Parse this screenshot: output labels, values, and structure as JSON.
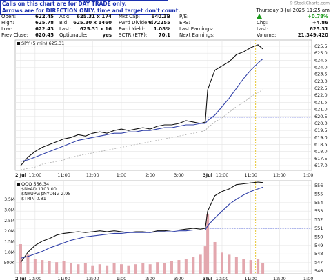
{
  "header": {
    "notes": [
      "Calls on this chart are for DAY TRADE only.",
      "Arrows are for DIRECTION ONLY, time and target don't count."
    ],
    "watermark": "© StockCharts.com",
    "date": "Thursday 3-Jul-2025 11:25 am",
    "change_pct": "+0.78%"
  },
  "quote": {
    "cols": [
      [
        [
          "Open:",
          "622.45"
        ],
        [
          "High:",
          "625.78"
        ],
        [
          "Low:",
          "622.43"
        ],
        [
          "Prev Close:",
          "620.45"
        ]
      ],
      [
        [
          "Ask:",
          "625.31 x 174"
        ],
        [
          "Bid:",
          "625.30 x 1460"
        ],
        [
          "Last:",
          "625.31 x 16"
        ],
        [
          "Optionable:",
          "yes"
        ]
      ],
      [
        [
          "Mkt Cap:",
          "640.3B"
        ],
        [
          "Fwrd Dividend:",
          "6.72255"
        ],
        [
          "Fwrd Yield:",
          "1.08%"
        ],
        [
          "SCTR (ETF):",
          "70.1"
        ]
      ],
      [
        [
          "P/E:"
        ],
        [
          "EPS:"
        ],
        [
          "Last Earnings:"
        ],
        [
          "Next Earnings:"
        ]
      ],
      [
        [
          "Chg:",
          "+4.86"
        ],
        [
          "Last:",
          "625.31"
        ],
        [
          "Volume:",
          "21,349,420"
        ]
      ]
    ]
  },
  "chart_data": [
    {
      "type": "line",
      "x": [
        0,
        3,
        6,
        9,
        12,
        15,
        18,
        21,
        24,
        27,
        30,
        33,
        36,
        39,
        42,
        45,
        48,
        51,
        54,
        57,
        60,
        63,
        66,
        69,
        72,
        75,
        77,
        78,
        81,
        84,
        87,
        90,
        93,
        96,
        99,
        101
      ],
      "xlim": [
        -2.3,
        121.4
      ],
      "xticks": [
        {
          "value": 0,
          "label": "2 Jul"
        },
        {
          "value": 6,
          "label": "10:00"
        },
        {
          "value": 18,
          "label": "11:00"
        },
        {
          "value": 30,
          "label": "12:00"
        },
        {
          "value": 42,
          "label": "1:00"
        },
        {
          "value": 54,
          "label": "2:00"
        },
        {
          "value": 66,
          "label": "3:00"
        },
        {
          "value": 78,
          "label": "3Jul"
        },
        {
          "value": 84,
          "label": "10:00"
        },
        {
          "value": 96,
          "label": "11:00"
        },
        {
          "value": 108,
          "label": "12:00"
        },
        {
          "value": 120,
          "label": "1:00"
        }
      ],
      "ylim": [
        616.66,
        625.94
      ],
      "yticks": [
        {
          "value": 617,
          "label": "617.0"
        },
        617.5,
        {
          "value": 618,
          "label": "618.0"
        },
        618.5,
        {
          "value": 619,
          "label": "619.0"
        },
        619.5,
        {
          "value": 620,
          "label": "620.0"
        },
        620.5,
        {
          "value": 621,
          "label": "621.0"
        },
        621.5,
        {
          "value": 622,
          "label": "622.0"
        },
        622.5,
        {
          "value": 623,
          "label": "623.0"
        },
        623.5,
        {
          "value": 624,
          "label": "624.0"
        },
        624.5,
        {
          "value": 625,
          "label": "625.0"
        },
        625.5
      ],
      "grid": true,
      "ref_line": {
        "value": 620.45,
        "x_from": 78
      },
      "vline_x": 98,
      "series": [
        {
          "name": "SPY (5 min) 625.31",
          "color": "#111111",
          "values": [
            617.0,
            617.6,
            618.0,
            618.3,
            618.5,
            618.7,
            618.9,
            619.0,
            619.2,
            619.1,
            619.3,
            619.4,
            619.3,
            619.5,
            619.6,
            619.5,
            619.6,
            619.7,
            619.6,
            619.8,
            619.9,
            619.9,
            620.0,
            620.2,
            620.1,
            620.0,
            620.1,
            622.4,
            623.8,
            624.1,
            624.4,
            624.9,
            625.1,
            625.4,
            625.6,
            625.31
          ]
        },
        {
          "color": "#3040a8",
          "values": [
            617.3,
            617.4,
            617.6,
            617.8,
            618.0,
            618.2,
            618.4,
            618.6,
            618.8,
            618.9,
            619.0,
            619.1,
            619.2,
            619.3,
            619.3,
            619.4,
            619.4,
            619.5,
            619.5,
            619.6,
            619.7,
            619.7,
            619.8,
            619.9,
            619.9,
            620.0,
            620.0,
            620.2,
            620.6,
            621.2,
            621.8,
            622.5,
            623.2,
            623.8,
            624.3,
            624.6
          ]
        },
        {
          "color": "#aaaaaa",
          "dash": true,
          "values": [
            616.7,
            616.8,
            616.9,
            617.1,
            617.2,
            617.3,
            617.4,
            617.6,
            617.7,
            617.8,
            617.9,
            618.0,
            618.1,
            618.2,
            618.3,
            618.4,
            618.5,
            618.6,
            618.7,
            618.8,
            618.9,
            619.0,
            619.1,
            619.2,
            619.3,
            619.4,
            619.5,
            619.7,
            620.1,
            620.4,
            620.8,
            621.2,
            621.5,
            621.9,
            622.2,
            622.4
          ]
        }
      ]
    },
    {
      "type": "line",
      "x": [
        0,
        3,
        6,
        9,
        12,
        15,
        18,
        21,
        24,
        27,
        30,
        33,
        36,
        39,
        42,
        45,
        48,
        51,
        54,
        57,
        60,
        63,
        66,
        69,
        72,
        75,
        77,
        78,
        81,
        84,
        87,
        90,
        93,
        96,
        99,
        101
      ],
      "xlim": [
        -2.3,
        121.4
      ],
      "xticks": [
        {
          "value": 0,
          "label": "2 Jul"
        },
        {
          "value": 6,
          "label": "10:00"
        },
        {
          "value": 18,
          "label": "11:00"
        },
        {
          "value": 30,
          "label": "12:00"
        },
        {
          "value": 42,
          "label": "1:00"
        },
        {
          "value": 54,
          "label": "2:00"
        },
        {
          "value": 66,
          "label": "3:00"
        },
        {
          "value": 78,
          "label": "3Jul"
        },
        {
          "value": 84,
          "label": "10:00"
        },
        {
          "value": 96,
          "label": "11:00"
        },
        {
          "value": 108,
          "label": "12:00"
        },
        {
          "value": 120,
          "label": "1:00"
        }
      ],
      "ylim": [
        545.68,
        556.56
      ],
      "yticks": [
        546,
        547,
        548,
        549,
        550,
        551,
        552,
        553,
        554,
        555,
        556
      ],
      "y2lim": [
        0,
        4400000
      ],
      "y2ticks": [
        {
          "value": 500000,
          "label": "500K"
        },
        {
          "value": 1000000,
          "label": "1.0M"
        },
        {
          "value": 1500000,
          "label": "1.5M"
        },
        {
          "value": 2000000,
          "label": "2.0M"
        },
        {
          "value": 2500000,
          "label": "2.5M"
        },
        {
          "value": 3000000,
          "label": "3.0M"
        },
        {
          "value": 3500000,
          "label": "3.5M"
        }
      ],
      "grid": true,
      "ref_line": {
        "value": 551.0,
        "x_from": 78
      },
      "vline_x": 98,
      "indicators": [
        "$NYAD 1103.00",
        "$NYUPV:$NYDNV 2.95",
        "$TRIN 0.81"
      ],
      "series": [
        {
          "type": "bar",
          "axis": "y2",
          "color": "#e3a7ae",
          "values": [
            1400000,
            900000,
            700000,
            650000,
            600000,
            550000,
            600000,
            500000,
            450000,
            500000,
            400000,
            450000,
            400000,
            500000,
            450000,
            400000,
            450000,
            500000,
            450000,
            550000,
            500000,
            600000,
            650000,
            700000,
            800000,
            900000,
            1300000,
            2800000,
            1500000,
            1000000,
            900000,
            800000,
            700000,
            650000,
            700000,
            500000
          ]
        },
        {
          "name": "QQQ 556.34",
          "color": "#111111",
          "values": [
            547.0,
            548.2,
            549.0,
            549.5,
            549.8,
            550.2,
            550.4,
            550.5,
            550.6,
            550.5,
            550.6,
            550.7,
            550.6,
            550.7,
            550.6,
            550.5,
            550.6,
            550.6,
            550.5,
            550.7,
            550.7,
            550.8,
            550.8,
            550.9,
            551.0,
            550.9,
            551.0,
            553.0,
            554.8,
            555.3,
            555.6,
            556.1,
            556.2,
            556.3,
            556.4,
            556.34
          ]
        },
        {
          "color": "#3040a8",
          "values": [
            547.5,
            547.7,
            548.0,
            548.3,
            548.7,
            549.0,
            549.3,
            549.6,
            549.8,
            550.0,
            550.1,
            550.2,
            550.3,
            550.4,
            550.4,
            550.5,
            550.5,
            550.5,
            550.5,
            550.6,
            550.6,
            550.6,
            550.7,
            550.7,
            550.8,
            550.8,
            550.8,
            551.3,
            552.2,
            553.0,
            553.8,
            554.4,
            554.9,
            555.3,
            555.6,
            555.8
          ]
        }
      ]
    }
  ]
}
